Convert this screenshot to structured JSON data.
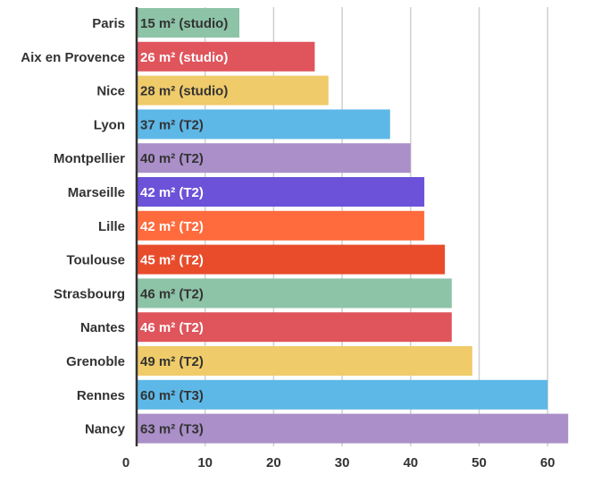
{
  "chart_data": {
    "type": "bar",
    "orientation": "horizontal",
    "categories": [
      "Paris",
      "Aix en Provence",
      "Nice",
      "Lyon",
      "Montpellier",
      "Marseille",
      "Lille",
      "Toulouse",
      "Strasbourg",
      "Nantes",
      "Grenoble",
      "Rennes",
      "Nancy"
    ],
    "values": [
      15,
      26,
      28,
      37,
      40,
      42,
      42,
      45,
      46,
      46,
      49,
      60,
      63
    ],
    "data_labels": [
      "15 m² (studio)",
      "26 m² (studio)",
      "28 m² (studio)",
      "37 m² (T2)",
      "40 m² (T2)",
      "42 m² (T2)",
      "42 m² (T2)",
      "45 m² (T2)",
      "46 m² (T2)",
      "46 m² (T2)",
      "49 m² (T2)",
      "60 m² (T3)",
      "63 m² (T3)"
    ],
    "bar_colors": [
      "#8dc3a7",
      "#e0545b",
      "#f0cb6a",
      "#5db8e8",
      "#aa8fc9",
      "#6b52d9",
      "#ff6b3d",
      "#e84c2b",
      "#8dc3a7",
      "#e0545b",
      "#f0cb6a",
      "#5db8e8",
      "#aa8fc9"
    ],
    "label_colors": [
      "#333333",
      "#ffffff",
      "#333333",
      "#333333",
      "#333333",
      "#ffffff",
      "#ffffff",
      "#ffffff",
      "#333333",
      "#ffffff",
      "#333333",
      "#333333",
      "#333333"
    ],
    "x_ticks": [
      0,
      10,
      20,
      30,
      40,
      50,
      60
    ],
    "xlim": [
      0,
      63.5
    ],
    "grid": true,
    "title": "",
    "xlabel": "",
    "ylabel": ""
  }
}
